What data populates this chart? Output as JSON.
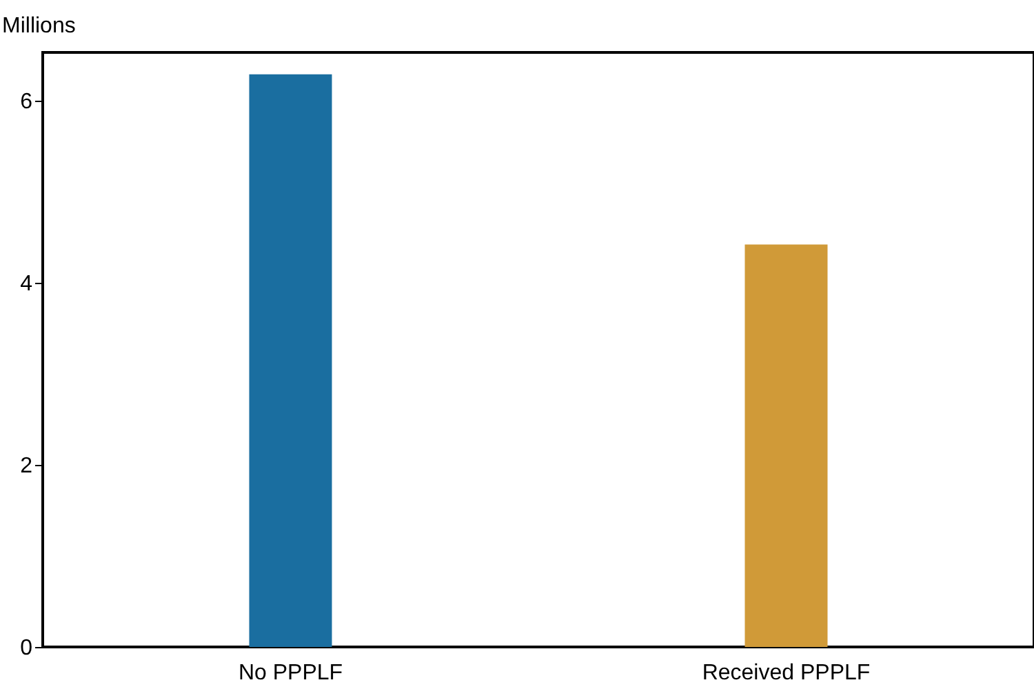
{
  "chart_data": {
    "type": "bar",
    "ylabel": "Millions",
    "categories": [
      "No PPPLF",
      "Received PPPLF"
    ],
    "values": [
      6.29,
      4.42
    ],
    "colors": [
      "#1a6ea0",
      "#d09a38"
    ],
    "ylim": [
      0,
      6.53
    ],
    "yticks": [
      0,
      2,
      4,
      6
    ],
    "grid": false
  }
}
